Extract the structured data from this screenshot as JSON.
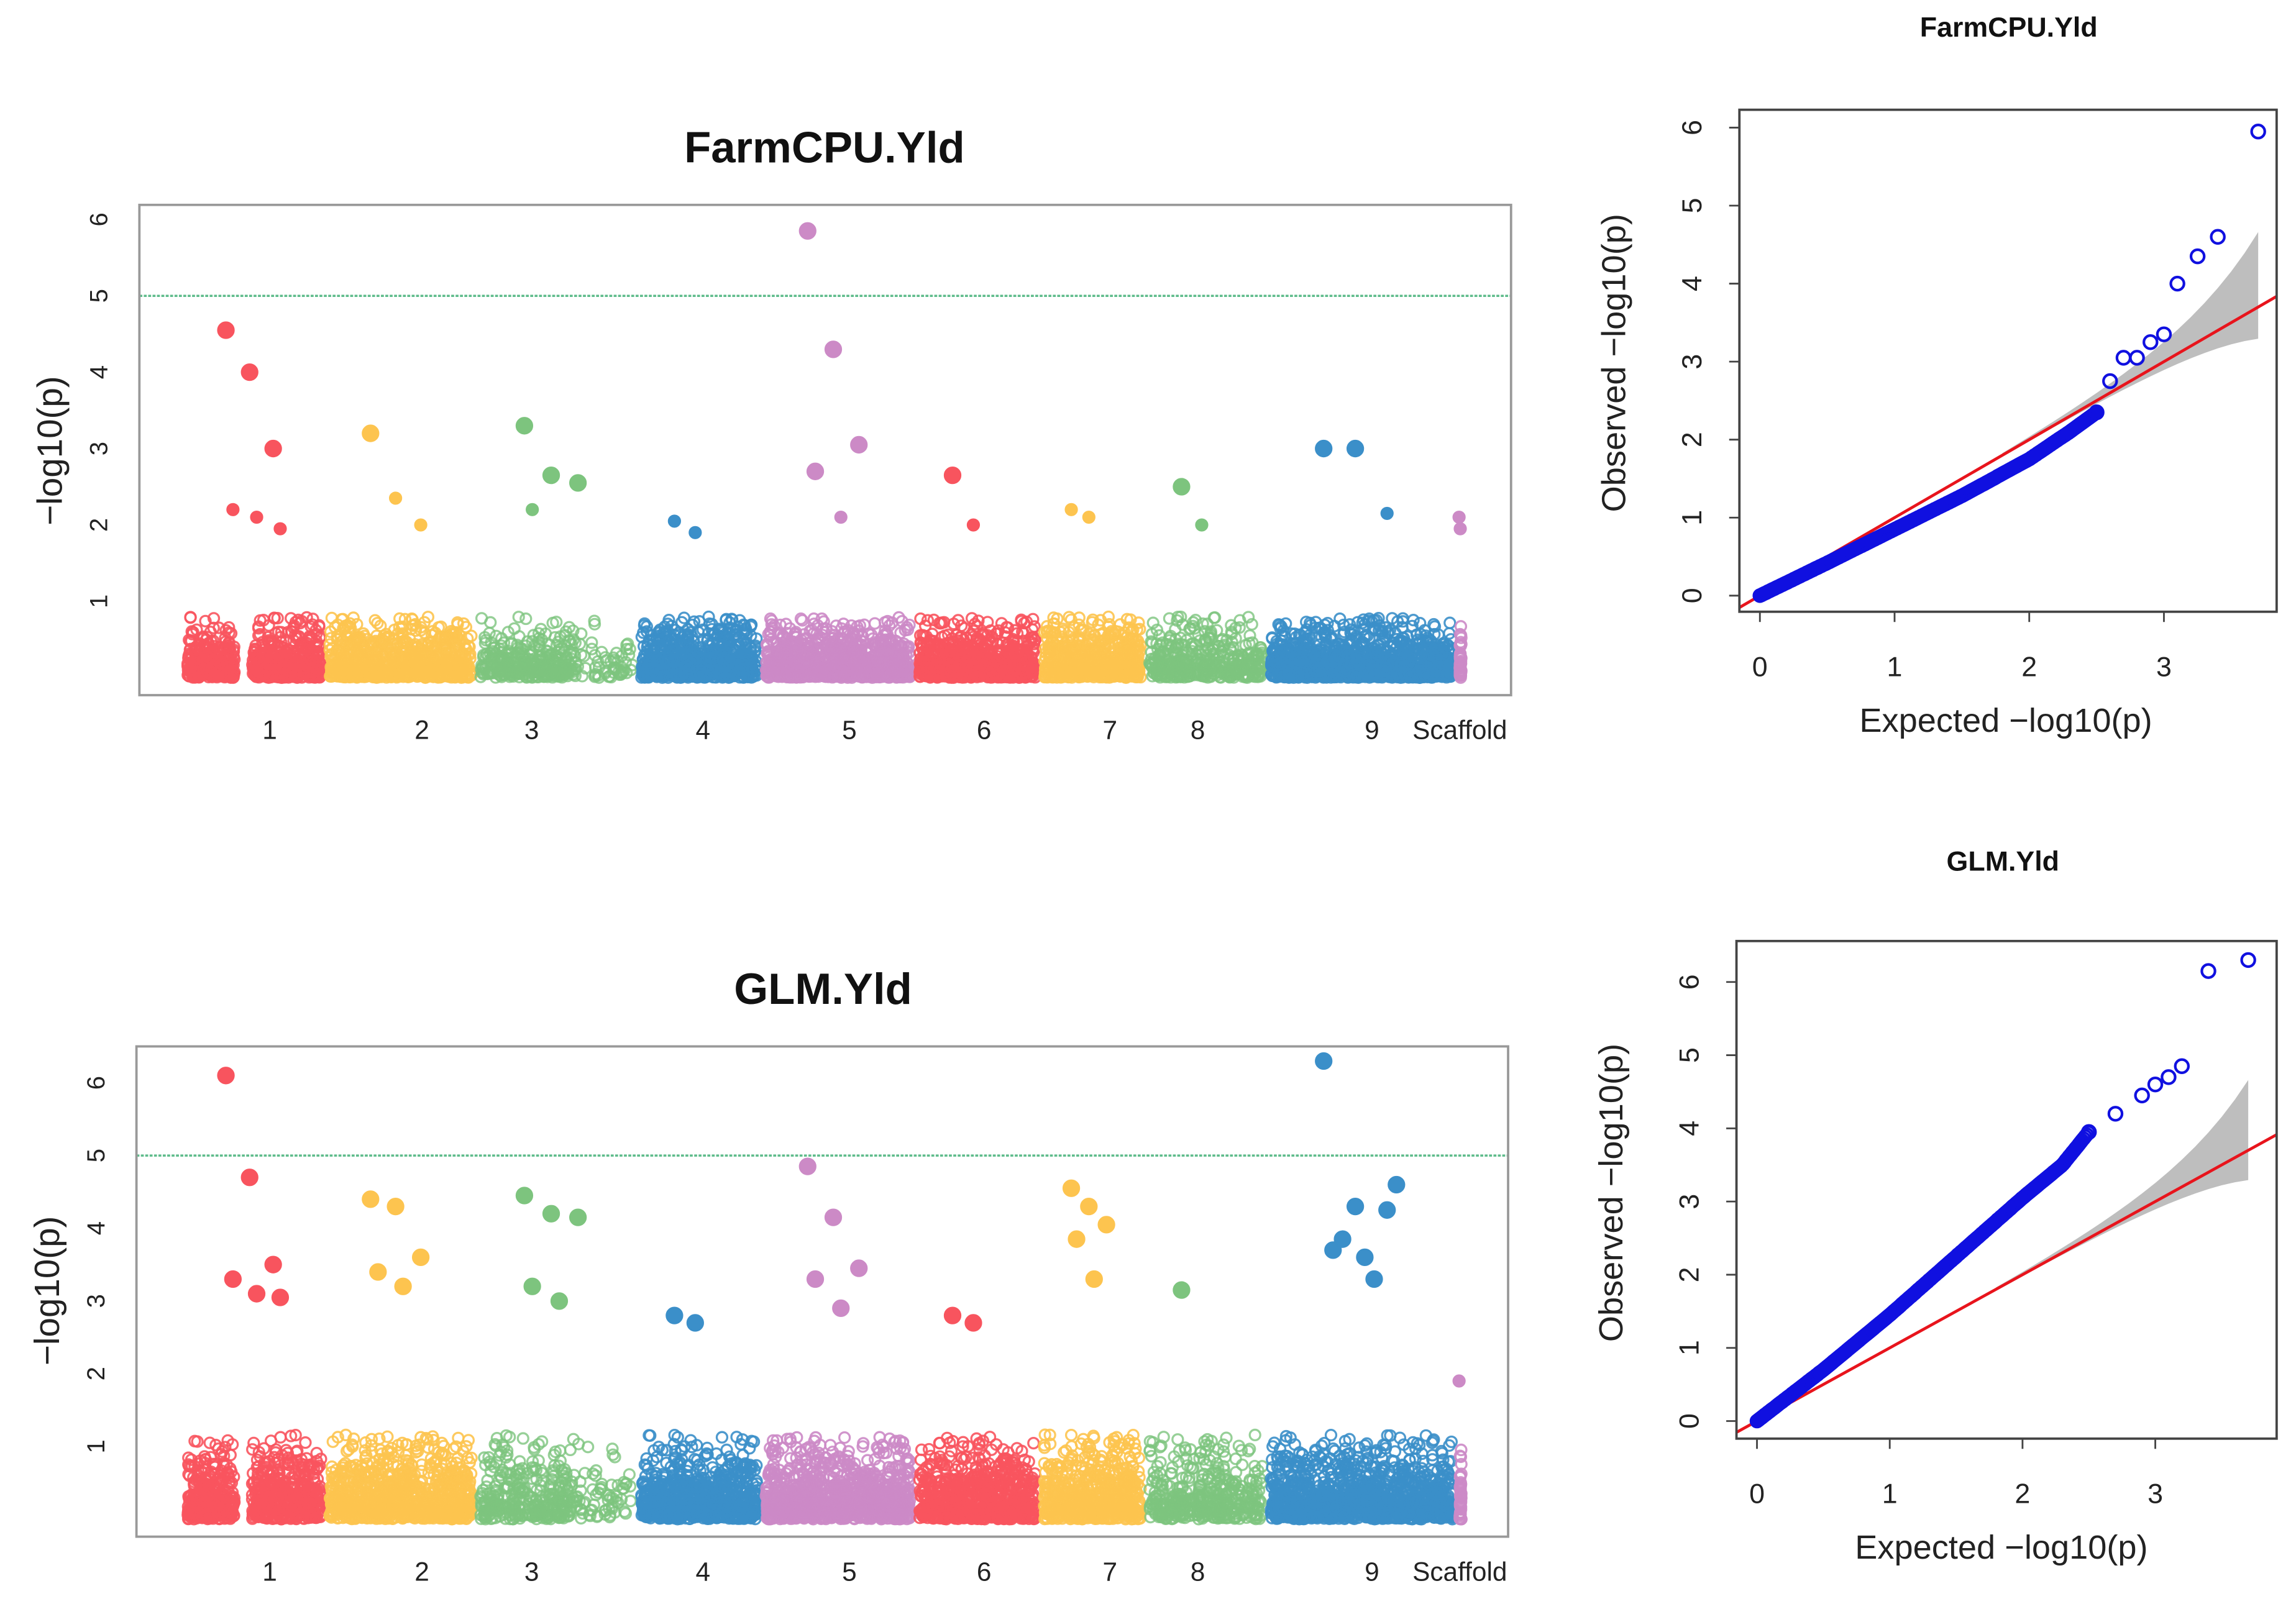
{
  "colors": {
    "chr_palette": [
      "#F8545E",
      "#FDC44F",
      "#7DC47E",
      "#3B8FC9",
      "#CC8AC6"
    ],
    "threshold_line": "#5DBB8A",
    "qq_points": "#1010E0",
    "qq_line": "#E8141C",
    "qq_band": "#BEBEBE"
  },
  "chart_data": [
    {
      "type": "scatter",
      "kind": "manhattan",
      "title": "FarmCPU.Yld",
      "ylabel": "−log10(p)",
      "ylim": [
        0,
        6.2
      ],
      "yticks": [
        1,
        2,
        3,
        4,
        5,
        6
      ],
      "threshold": 5,
      "chromosomes": [
        "1",
        "2",
        "3",
        "4",
        "5",
        "6",
        "7",
        "8",
        "9",
        "Scaffold"
      ],
      "peaks": [
        {
          "chr": "1",
          "y": [
            4.55,
            4.0,
            3.0,
            2.2,
            2.1,
            1.95
          ]
        },
        {
          "chr": "2",
          "y": [
            3.2,
            2.35,
            2.0
          ]
        },
        {
          "chr": "3",
          "y": [
            3.3,
            2.65,
            2.55,
            2.2
          ]
        },
        {
          "chr": "4",
          "y": [
            2.05,
            1.9
          ]
        },
        {
          "chr": "5",
          "y": [
            5.85,
            4.3,
            3.05,
            2.7,
            2.1
          ]
        },
        {
          "chr": "6",
          "y": [
            2.65,
            2.0
          ]
        },
        {
          "chr": "7",
          "y": [
            2.2,
            2.1
          ]
        },
        {
          "chr": "8",
          "y": [
            2.5,
            2.0
          ]
        },
        {
          "chr": "9",
          "y": [
            3.0,
            3.0,
            2.15
          ]
        },
        {
          "chr": "Scaffold",
          "y": [
            2.1,
            1.95
          ]
        }
      ]
    },
    {
      "type": "scatter",
      "kind": "qq",
      "title": "FarmCPU.Yld",
      "xlabel": "Expected −log10(p)",
      "ylabel": "Observed −log10(p)",
      "xlim": [
        0,
        3.75
      ],
      "ylim": [
        0,
        6.1
      ],
      "xticks": [
        0,
        1,
        2,
        3
      ],
      "yticks": [
        0,
        1,
        2,
        3,
        4,
        5,
        6
      ],
      "points": [
        [
          0,
          0
        ],
        [
          0.5,
          0.42
        ],
        [
          1,
          0.85
        ],
        [
          1.5,
          1.28
        ],
        [
          2,
          1.75
        ],
        [
          2.3,
          2.1
        ],
        [
          2.5,
          2.35
        ],
        [
          2.6,
          2.75
        ],
        [
          2.7,
          3.05
        ],
        [
          2.8,
          3.05
        ],
        [
          2.9,
          3.25
        ],
        [
          3.0,
          3.35
        ],
        [
          3.1,
          4.0
        ],
        [
          3.25,
          4.35
        ],
        [
          3.4,
          4.6
        ],
        [
          3.7,
          5.95
        ]
      ]
    },
    {
      "type": "scatter",
      "kind": "manhattan",
      "title": "GLM.Yld",
      "ylabel": "−log10(p)",
      "ylim": [
        0,
        6.5
      ],
      "yticks": [
        1,
        2,
        3,
        4,
        5,
        6
      ],
      "threshold": 5,
      "chromosomes": [
        "1",
        "2",
        "3",
        "4",
        "5",
        "6",
        "7",
        "8",
        "9",
        "Scaffold"
      ],
      "peaks": [
        {
          "chr": "1",
          "y": [
            6.1,
            4.7,
            3.5,
            3.3,
            3.1,
            3.05
          ]
        },
        {
          "chr": "2",
          "y": [
            4.4,
            4.3,
            3.6,
            3.4,
            3.2
          ]
        },
        {
          "chr": "3",
          "y": [
            4.45,
            4.2,
            4.15,
            3.2,
            3.0
          ]
        },
        {
          "chr": "4",
          "y": [
            2.8,
            2.7
          ]
        },
        {
          "chr": "5",
          "y": [
            4.85,
            4.15,
            3.45,
            3.3,
            2.9
          ]
        },
        {
          "chr": "6",
          "y": [
            2.8,
            2.7
          ]
        },
        {
          "chr": "7",
          "y": [
            4.55,
            4.3,
            4.05,
            3.85,
            3.3
          ]
        },
        {
          "chr": "8",
          "y": [
            3.15
          ]
        },
        {
          "chr": "9",
          "y": [
            6.3,
            4.3,
            4.25,
            3.7,
            3.6,
            4.6,
            3.85,
            3.3
          ]
        },
        {
          "chr": "Scaffold",
          "y": [
            1.9
          ]
        }
      ]
    },
    {
      "type": "scatter",
      "kind": "qq",
      "title": "GLM.Yld",
      "xlabel": "Expected −log10(p)",
      "ylabel": "Observed −log10(p)",
      "xlim": [
        0,
        3.75
      ],
      "ylim": [
        0,
        6.5
      ],
      "xticks": [
        0,
        1,
        2,
        3
      ],
      "yticks": [
        0,
        1,
        2,
        3,
        4,
        5,
        6
      ],
      "points": [
        [
          0,
          0
        ],
        [
          0.5,
          0.7
        ],
        [
          1,
          1.45
        ],
        [
          1.5,
          2.25
        ],
        [
          2,
          3.05
        ],
        [
          2.3,
          3.5
        ],
        [
          2.5,
          3.95
        ],
        [
          2.7,
          4.2
        ],
        [
          2.9,
          4.45
        ],
        [
          3.0,
          4.6
        ],
        [
          3.1,
          4.7
        ],
        [
          3.2,
          4.85
        ],
        [
          3.4,
          6.15
        ],
        [
          3.7,
          6.3
        ]
      ]
    }
  ]
}
